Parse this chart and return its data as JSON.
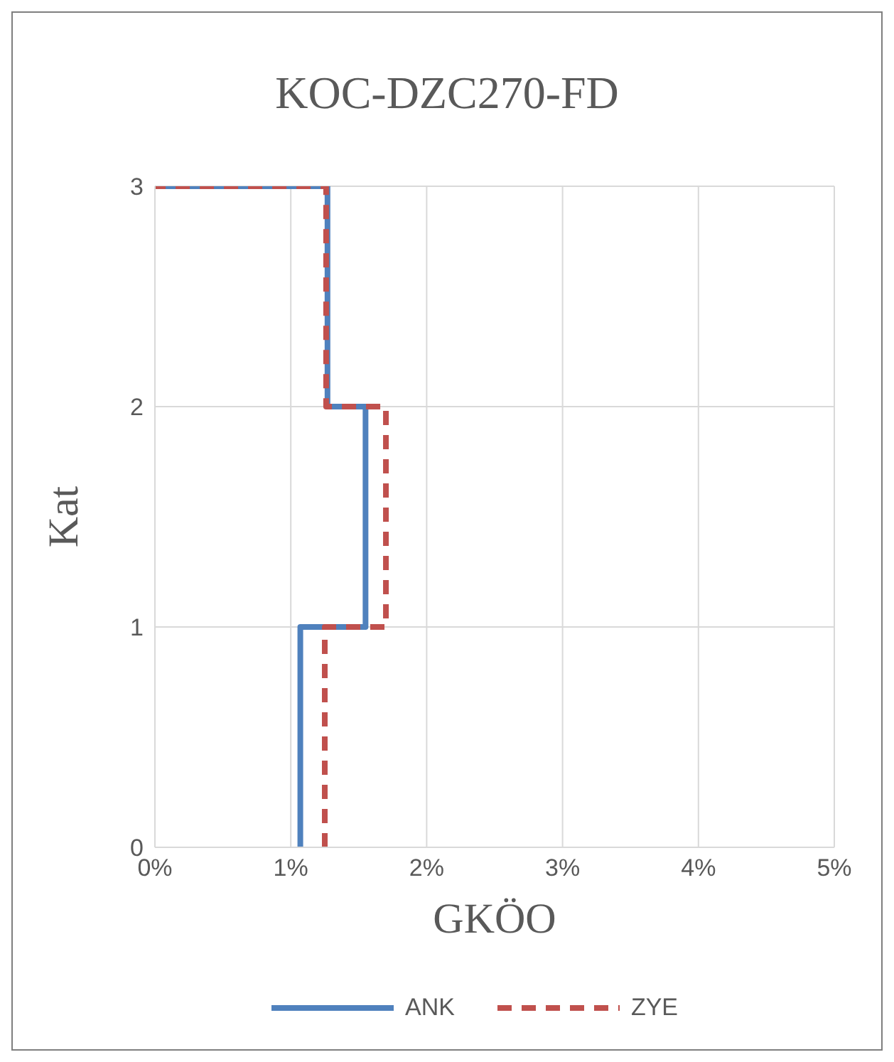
{
  "chart_data": {
    "type": "line",
    "title": "KOC-DZC270-FD",
    "xlabel": "GKÖO",
    "ylabel": "Kat",
    "series": [
      {
        "name": "ANK",
        "color": "#4f81bd",
        "line_style": "solid",
        "x": [
          1.07,
          1.07,
          1.55,
          1.55,
          1.27,
          1.27,
          0
        ],
        "values": [
          0,
          1,
          1,
          2,
          2,
          3,
          3
        ]
      },
      {
        "name": "ZYE",
        "color": "#c0504d",
        "line_style": "dashed",
        "x": [
          1.25,
          1.25,
          1.7,
          1.7,
          1.26,
          1.26,
          0
        ],
        "values": [
          0,
          1,
          1,
          2,
          2,
          3,
          3
        ]
      }
    ],
    "xlim": [
      0,
      5
    ],
    "xticks": [
      {
        "value": 0,
        "label": "0%"
      },
      {
        "value": 1,
        "label": "1%"
      },
      {
        "value": 2,
        "label": "2%"
      },
      {
        "value": 3,
        "label": "3%"
      },
      {
        "value": 4,
        "label": "4%"
      },
      {
        "value": 5,
        "label": "5%"
      }
    ],
    "ylim": [
      0,
      3
    ],
    "yticks": [
      0,
      1,
      2,
      3
    ],
    "grid": true,
    "legend": "bottom",
    "marker": "none"
  }
}
